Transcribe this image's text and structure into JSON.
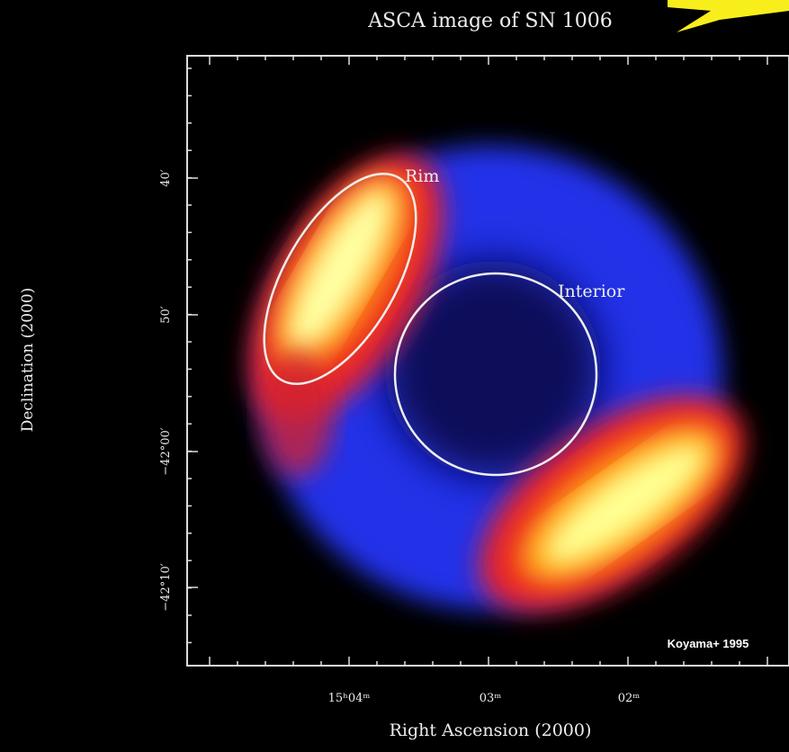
{
  "title": "ASCA image of SN 1006",
  "y_axis_label": "Declination (2000)",
  "x_axis_label": "Right Ascension (2000)",
  "x_tick_labels": [
    "15ʰ04ᵐ",
    "03ᵐ",
    "02ᵐ"
  ],
  "y_tick_labels": [
    "40′",
    "50′",
    "−42°00′",
    "−42°10′"
  ],
  "annotations": {
    "rim": "Rim",
    "interior": "Interior"
  },
  "credit": "Koyama+ 1995"
}
